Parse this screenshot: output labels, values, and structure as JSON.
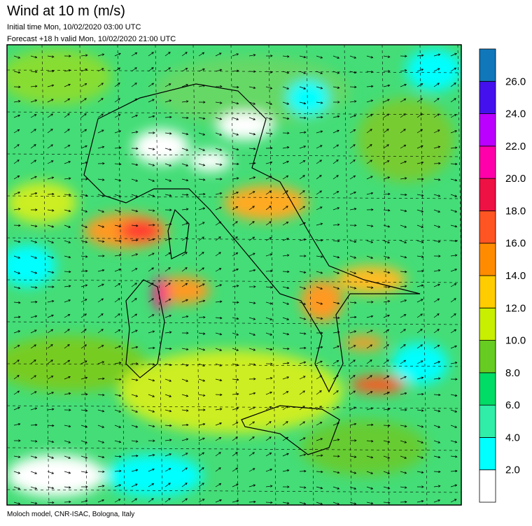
{
  "header": {
    "title": "Wind at 10 m (m/s)",
    "initial_time": "Initial time  Mon, 10/02/2020 03:00 UTC",
    "forecast": "Forecast +18 h valid  Mon, 10/02/2020 21:00 UTC"
  },
  "footer": "Moloch model, CNR-ISAC, Bologna, Italy",
  "legend": {
    "labels": [
      "2.0",
      "4.0",
      "6.0",
      "8.0",
      "10.0",
      "12.0",
      "14.0",
      "16.0",
      "18.0",
      "20.0",
      "22.0",
      "24.0",
      "26.0"
    ],
    "colors": [
      "#ffffff",
      "#00ffff",
      "#30eea8",
      "#00dd66",
      "#66cc22",
      "#c8ee00",
      "#ffcc00",
      "#ff8c00",
      "#ff5522",
      "#ee1144",
      "#ff00aa",
      "#bb00ff",
      "#4411ee",
      "#1177bb"
    ]
  }
}
